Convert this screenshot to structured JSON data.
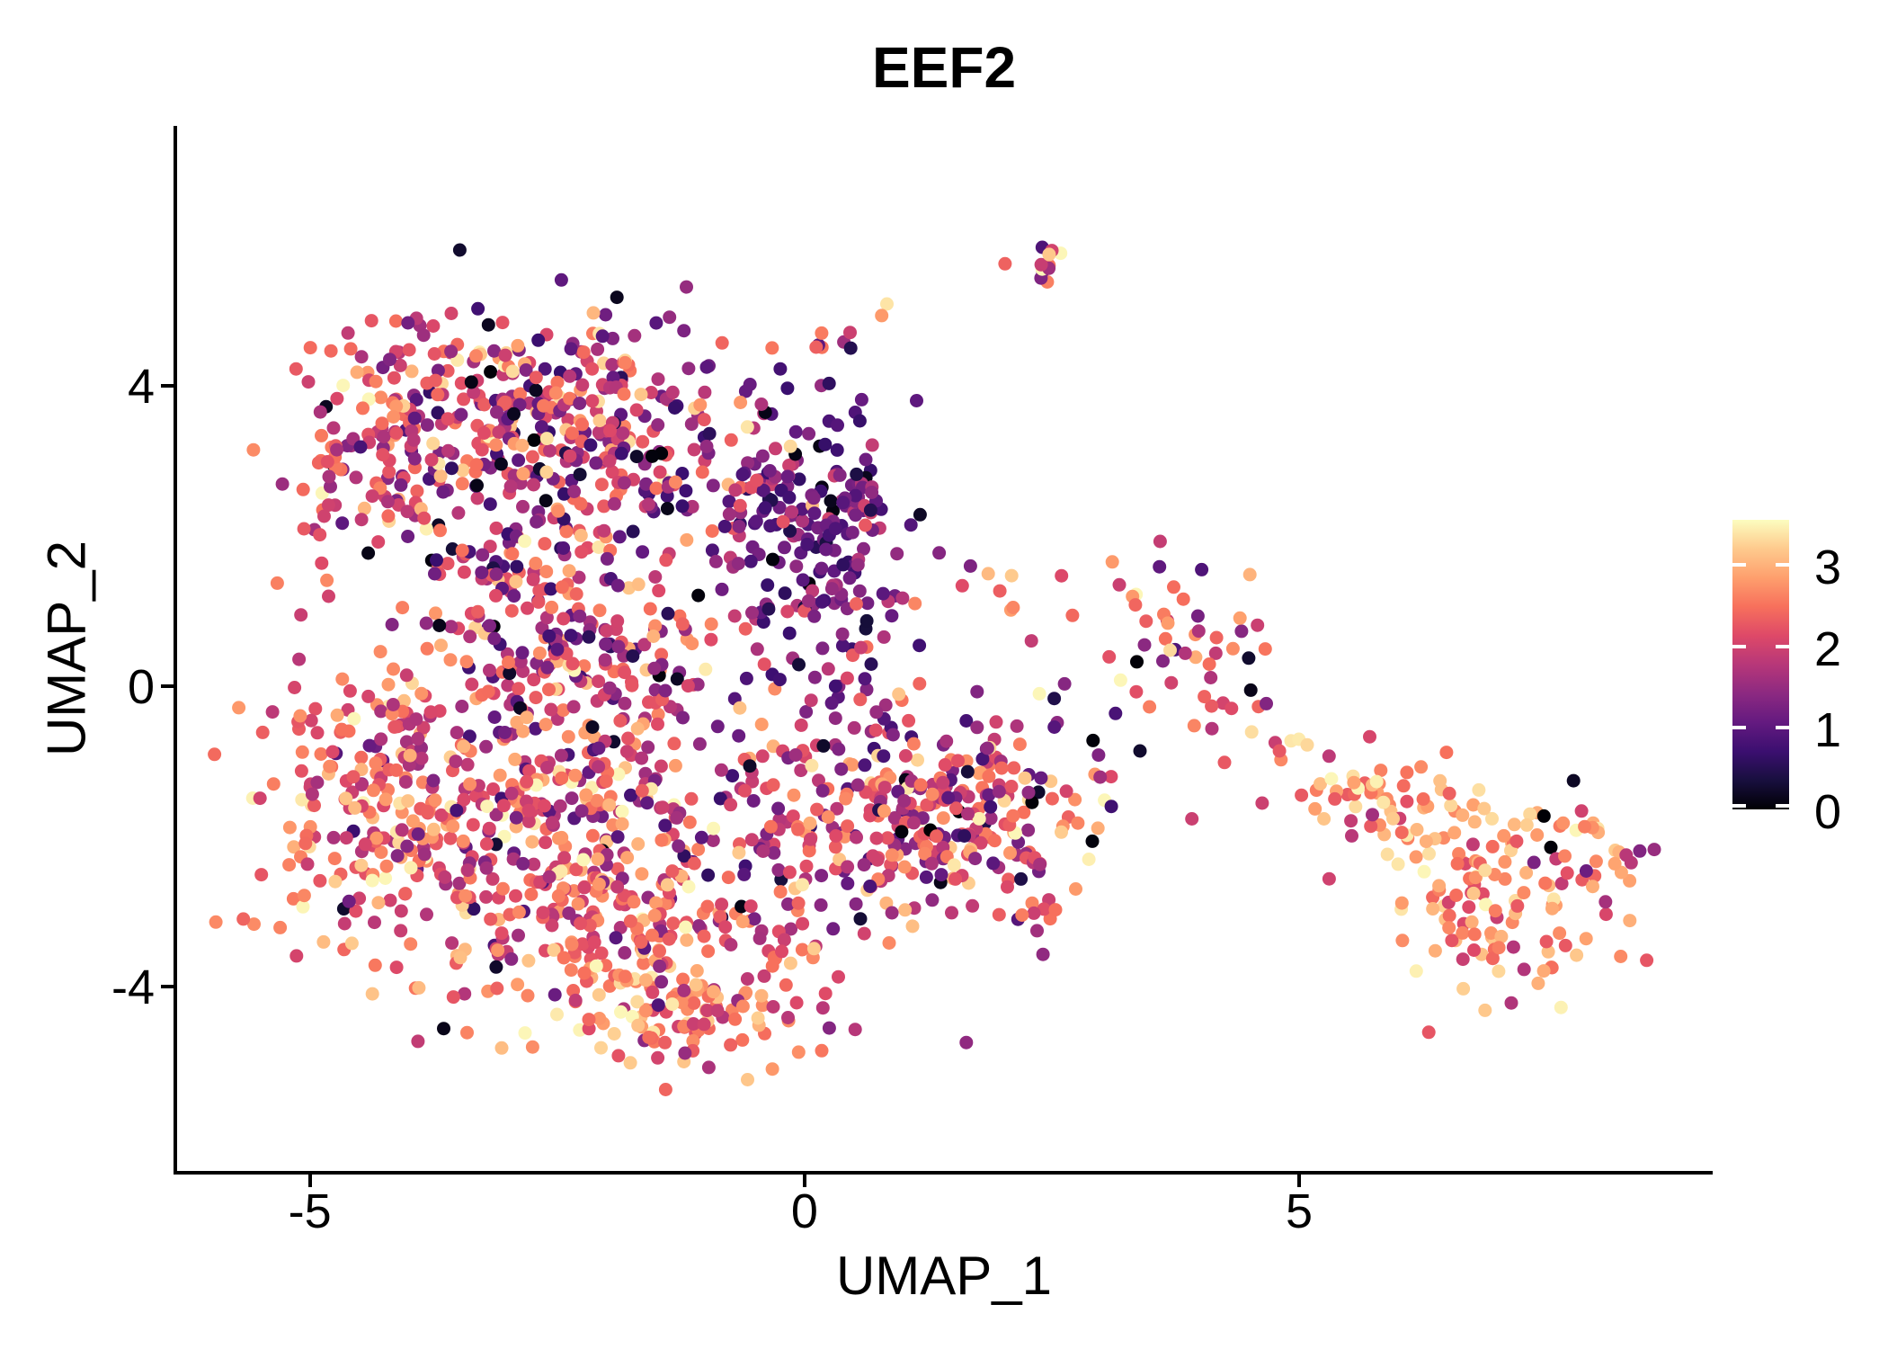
{
  "title": "EEF2",
  "axes": {
    "x": {
      "label": "UMAP_1",
      "tick_labels": [
        "-5",
        "0",
        "5"
      ],
      "tick_values": [
        -5,
        0,
        5
      ],
      "range": [
        -6.36,
        9.18
      ]
    },
    "y": {
      "label": "UMAP_2",
      "tick_labels": [
        "4",
        "0",
        "-4"
      ],
      "tick_values": [
        4,
        0,
        -4
      ],
      "range": [
        -6.45,
        7.46
      ]
    }
  },
  "legend": {
    "position": "right",
    "tick_labels": [
      "3",
      "2",
      "1",
      "0"
    ],
    "tick_values": [
      3,
      2,
      1,
      0
    ],
    "bar_min": 0,
    "bar_max": 3.55
  },
  "colors": {
    "background": "#ffffff",
    "axis": "#000000",
    "text": "#000000",
    "magma_stops": [
      "#000004",
      "#180f3e",
      "#3b0f70",
      "#641a80",
      "#8c2981",
      "#b73779",
      "#de4968",
      "#f7705c",
      "#fe9f6d",
      "#feca8d",
      "#fcfdbf"
    ]
  },
  "chart_data": {
    "type": "scatter",
    "title": "EEF2",
    "xlabel": "UMAP_1",
    "ylabel": "UMAP_2",
    "xlim": [
      -6.4,
      9.2
    ],
    "ylim": [
      -6.5,
      7.5
    ],
    "grid": false,
    "legend_position": "right",
    "color_scale": {
      "name": "magma",
      "domain": [
        0,
        3.55
      ],
      "legend_ticks": [
        0,
        1,
        2,
        3
      ]
    },
    "point_radius_px": 7.5,
    "n_points_estimate": 2400,
    "seed": 1337,
    "clusters": [
      {
        "name": "upper-blob-left-arm",
        "cx": -4.35,
        "cy": 3.1,
        "sx": 0.42,
        "sy": 0.75,
        "n": 90,
        "expr_mean": 2.1,
        "expr_sd": 0.6,
        "dark_frac": 0.02,
        "light_frac": 0.01
      },
      {
        "name": "upper-blob-main",
        "cx": -2.85,
        "cy": 3.85,
        "sx": 0.95,
        "sy": 0.6,
        "n": 230,
        "expr_mean": 1.95,
        "expr_sd": 0.75,
        "dark_frac": 0.02,
        "light_frac": 0.01
      },
      {
        "name": "upper-blob-core",
        "cx": -1.85,
        "cy": 2.9,
        "sx": 0.95,
        "sy": 0.8,
        "n": 210,
        "expr_mean": 1.75,
        "expr_sd": 0.7,
        "dark_frac": 0.02,
        "light_frac": 0.01
      },
      {
        "name": "upper-blob-dark-right",
        "cx": 0.15,
        "cy": 1.95,
        "sx": 0.5,
        "sy": 0.95,
        "n": 200,
        "expr_mean": 1.15,
        "expr_sd": 0.5,
        "dark_frac": 0.04,
        "light_frac": 0.005
      },
      {
        "name": "upper-inner-column",
        "cx": -3.0,
        "cy": 1.6,
        "sx": 0.5,
        "sy": 0.5,
        "n": 60,
        "expr_mean": 1.9,
        "expr_sd": 0.7,
        "dark_frac": 0.02,
        "light_frac": 0.01
      },
      {
        "name": "main-left-flank",
        "cx": -4.35,
        "cy": -1.7,
        "sx": 0.6,
        "sy": 1.0,
        "n": 180,
        "expr_mean": 2.35,
        "expr_sd": 0.55,
        "dark_frac": 0.01,
        "light_frac": 0.02
      },
      {
        "name": "main-center",
        "cx": -2.7,
        "cy": -1.3,
        "sx": 0.95,
        "sy": 0.9,
        "n": 280,
        "expr_mean": 2.05,
        "expr_sd": 0.7,
        "dark_frac": 0.02,
        "light_frac": 0.02
      },
      {
        "name": "main-upper-band",
        "cx": -2.2,
        "cy": 0.45,
        "sx": 0.85,
        "sy": 0.5,
        "n": 140,
        "expr_mean": 1.85,
        "expr_sd": 0.7,
        "dark_frac": 0.02,
        "light_frac": 0.01
      },
      {
        "name": "main-bottom",
        "cx": -1.8,
        "cy": -3.25,
        "sx": 1.05,
        "sy": 0.75,
        "n": 260,
        "expr_mean": 2.3,
        "expr_sd": 0.6,
        "dark_frac": 0.01,
        "light_frac": 0.03
      },
      {
        "name": "main-bottom-tip",
        "cx": -1.15,
        "cy": -4.45,
        "sx": 0.6,
        "sy": 0.35,
        "n": 80,
        "expr_mean": 2.55,
        "expr_sd": 0.5,
        "dark_frac": 0.005,
        "light_frac": 0.06
      },
      {
        "name": "main-right-mid",
        "cx": 0.55,
        "cy": -1.55,
        "sx": 0.85,
        "sy": 0.85,
        "n": 230,
        "expr_mean": 1.95,
        "expr_sd": 0.7,
        "dark_frac": 0.02,
        "light_frac": 0.01
      },
      {
        "name": "main-right-lobe",
        "cx": 1.75,
        "cy": -1.8,
        "sx": 0.6,
        "sy": 0.7,
        "n": 150,
        "expr_mean": 1.95,
        "expr_sd": 0.7,
        "dark_frac": 0.02,
        "light_frac": 0.01
      },
      {
        "name": "top-satellite",
        "cx": 2.45,
        "cy": 5.65,
        "sx": 0.2,
        "sy": 0.17,
        "n": 12,
        "expr_mean": 2.2,
        "expr_sd": 0.8,
        "dark_frac": 0.0,
        "light_frac": 0.0
      },
      {
        "name": "mid-right-cluster",
        "cx": 3.85,
        "cy": 0.75,
        "sx": 0.5,
        "sy": 0.6,
        "n": 45,
        "expr_mean": 2.3,
        "expr_sd": 0.6,
        "dark_frac": 0.05,
        "light_frac": 0.02
      },
      {
        "name": "right-sparse",
        "cx": 3.4,
        "cy": -0.9,
        "sx": 0.8,
        "sy": 0.65,
        "n": 16,
        "expr_mean": 2.1,
        "expr_sd": 0.8,
        "dark_frac": 0.05,
        "light_frac": 0.05
      },
      {
        "name": "far-right-a",
        "cx": 5.85,
        "cy": -1.55,
        "sx": 0.5,
        "sy": 0.28,
        "n": 50,
        "expr_mean": 2.6,
        "expr_sd": 0.5,
        "dark_frac": 0.02,
        "light_frac": 0.06
      },
      {
        "name": "far-right-b",
        "cx": 6.55,
        "cy": -2.4,
        "sx": 0.45,
        "sy": 0.55,
        "n": 60,
        "expr_mean": 2.7,
        "expr_sd": 0.45,
        "dark_frac": 0.0,
        "light_frac": 0.08
      },
      {
        "name": "far-right-c",
        "cx": 7.3,
        "cy": -3.35,
        "sx": 0.5,
        "sy": 0.45,
        "n": 60,
        "expr_mean": 2.65,
        "expr_sd": 0.5,
        "dark_frac": 0.0,
        "light_frac": 0.06
      },
      {
        "name": "far-right-hook",
        "cx": 7.85,
        "cy": -2.05,
        "sx": 0.3,
        "sy": 0.35,
        "n": 28,
        "expr_mean": 2.3,
        "expr_sd": 0.8,
        "dark_frac": 0.12,
        "light_frac": 0.02
      }
    ],
    "bridges": [
      {
        "name": "trail-to-satellite",
        "x1": 0.05,
        "y1": 4.5,
        "x2": 1.0,
        "y2": 5.0,
        "n": 8,
        "expr_mean": 2.5,
        "expr_sd": 0.6,
        "jitter": 0.08
      },
      {
        "name": "bridge-to-midright",
        "x1": 1.3,
        "y1": 1.05,
        "x2": 3.1,
        "y2": 0.9,
        "n": 10,
        "expr_mean": 2.0,
        "expr_sd": 0.8,
        "jitter": 0.3
      },
      {
        "name": "bridge-mid-to-far",
        "x1": 4.35,
        "y1": -0.1,
        "x2": 5.6,
        "y2": -1.25,
        "n": 10,
        "expr_mean": 2.2,
        "expr_sd": 0.7,
        "jitter": 0.18
      }
    ]
  }
}
